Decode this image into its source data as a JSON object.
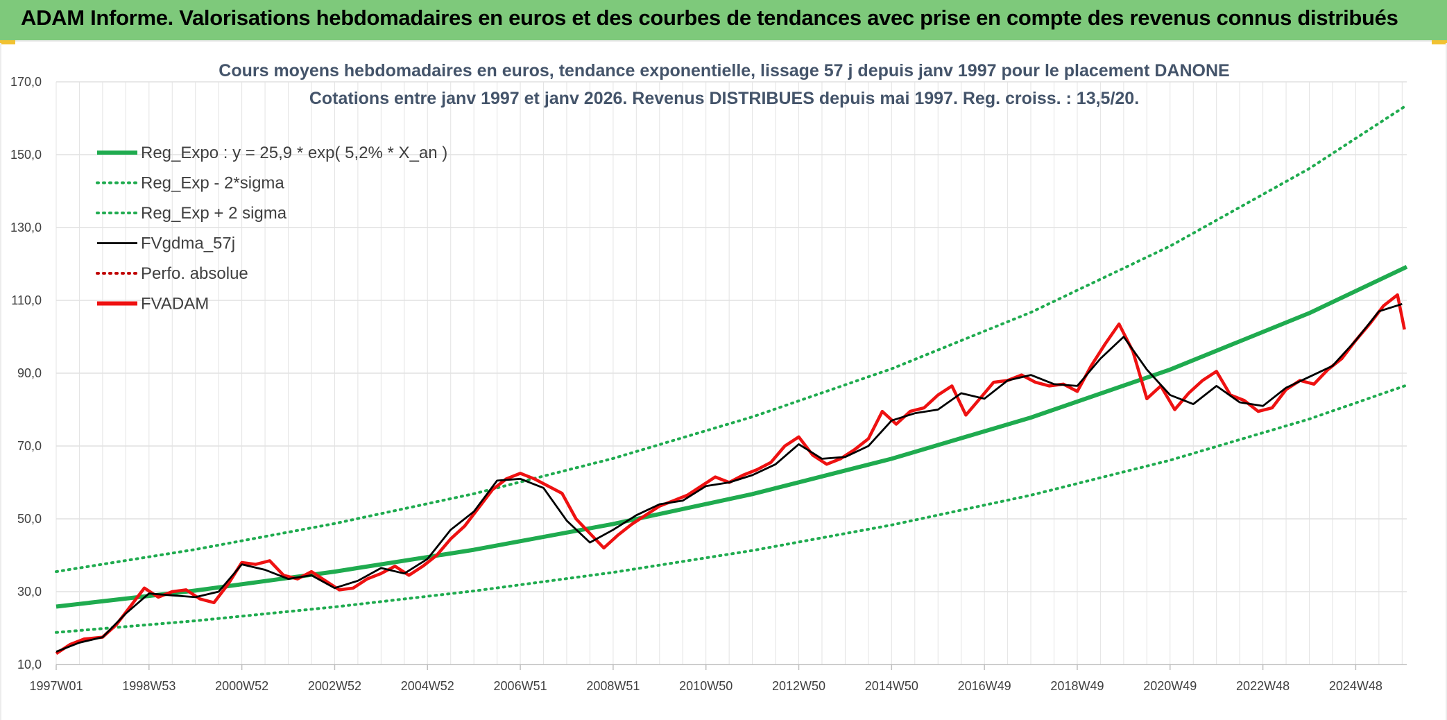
{
  "page": {
    "banner_title": "ADAM Informe. Valorisations hebdomadaires en euros et des courbes de tendances avec prise en compte des revenus connus distribués"
  },
  "colors": {
    "banner": "#7ec97b",
    "trend": "#1fab4f",
    "price": "#ee1111",
    "smooth": "#000000",
    "perfo": "#c00000"
  },
  "chart_data": {
    "type": "line",
    "title": "Cours moyens hebdomadaires en euros, tendance exponentielle, lissage 57 j depuis janv 1997 pour le placement DANONE",
    "subtitle": "Cotations entre janv 1997 et janv 2026. Revenus DISTRIBUES depuis mai 1997. Reg. croiss. : 13,5/20.",
    "xlabel": "",
    "ylabel": "",
    "ylim": [
      10,
      170
    ],
    "xlim": [
      1997.0,
      2026.1
    ],
    "grid": true,
    "legend_position": "top-left",
    "y_ticks": [
      "170,0",
      "150,0",
      "130,0",
      "110,0",
      "90,0",
      "70,0",
      "50,0",
      "30,0",
      "10,0"
    ],
    "y_tick_values": [
      170,
      150,
      130,
      110,
      90,
      70,
      50,
      30,
      10
    ],
    "x_ticks": [
      "1997W01",
      "1998W53",
      "2000W52",
      "2002W52",
      "2004W52",
      "2006W51",
      "2008W51",
      "2010W50",
      "2012W50",
      "2014W50",
      "2016W49",
      "2018W49",
      "2020W49",
      "2022W48",
      "2024W48"
    ],
    "x_tick_values": [
      1997.0,
      1999.0,
      2001.0,
      2003.0,
      2005.0,
      2007.0,
      2009.0,
      2011.0,
      2013.0,
      2015.0,
      2017.0,
      2019.0,
      2021.0,
      2023.0,
      2025.0
    ],
    "legend": [
      {
        "label": "Reg_Expo : y = 25,9 * exp( 5,2% *  X_an )",
        "style": "solid-thick",
        "color": "#1fab4f"
      },
      {
        "label": "Reg_Exp - 2*sigma",
        "style": "dotted",
        "color": "#1fab4f"
      },
      {
        "label": "Reg_Exp + 2 sigma",
        "style": "dotted",
        "color": "#1fab4f"
      },
      {
        "label": "FVgdma_57j",
        "style": "solid",
        "color": "#000000"
      },
      {
        "label": "Perfo. absolue",
        "style": "dotted",
        "color": "#c00000"
      },
      {
        "label": "FVADAM",
        "style": "solid-thick",
        "color": "#ee1111"
      }
    ],
    "series": [
      {
        "name": "Reg_Expo : y = 25,9 * exp( 5,2% *  X_an )",
        "x": [
          1997.0,
          2000.0,
          2003.0,
          2006.0,
          2009.0,
          2012.0,
          2015.0,
          2018.0,
          2021.0,
          2024.0,
          2026.1
        ],
        "values": [
          25.9,
          30.3,
          35.5,
          41.5,
          48.6,
          56.8,
          66.5,
          77.8,
          91.0,
          106.5,
          119.2
        ]
      },
      {
        "name": "Reg_Exp - 2*sigma",
        "x": [
          1997.0,
          2000.0,
          2003.0,
          2006.0,
          2009.0,
          2012.0,
          2015.0,
          2018.0,
          2021.0,
          2024.0,
          2026.1
        ],
        "values": [
          18.8,
          22.0,
          25.8,
          30.2,
          35.3,
          41.3,
          48.3,
          56.5,
          66.1,
          77.4,
          86.7
        ]
      },
      {
        "name": "Reg_Exp + 2 sigma",
        "x": [
          1997.0,
          2000.0,
          2003.0,
          2006.0,
          2009.0,
          2012.0,
          2015.0,
          2018.0,
          2021.0,
          2024.0,
          2026.1
        ],
        "values": [
          35.5,
          41.6,
          48.7,
          56.9,
          66.6,
          78.0,
          91.2,
          106.7,
          124.9,
          146.2,
          163.6
        ]
      },
      {
        "name": "FVgdma_57j",
        "x": [
          1997.0,
          1997.5,
          1998.0,
          1998.5,
          1999.0,
          1999.5,
          2000.0,
          2000.5,
          2001.0,
          2001.5,
          2002.0,
          2002.5,
          2003.0,
          2003.5,
          2004.0,
          2004.5,
          2005.0,
          2005.5,
          2006.0,
          2006.5,
          2007.0,
          2007.5,
          2008.0,
          2008.5,
          2009.0,
          2009.5,
          2010.0,
          2010.5,
          2011.0,
          2011.5,
          2012.0,
          2012.5,
          2013.0,
          2013.5,
          2014.0,
          2014.5,
          2015.0,
          2015.5,
          2016.0,
          2016.5,
          2017.0,
          2017.5,
          2018.0,
          2018.5,
          2019.0,
          2019.5,
          2020.0,
          2020.5,
          2021.0,
          2021.5,
          2022.0,
          2022.5,
          2023.0,
          2023.5,
          2024.0,
          2024.5,
          2025.0,
          2025.5,
          2026.0
        ],
        "values": [
          13.5,
          16.0,
          17.5,
          24.0,
          29.5,
          29.0,
          28.5,
          30.0,
          37.5,
          36.0,
          33.5,
          34.5,
          31.0,
          33.0,
          36.5,
          35.0,
          39.0,
          47.0,
          52.0,
          60.5,
          61.0,
          58.5,
          49.5,
          43.5,
          47.0,
          51.0,
          54.0,
          55.0,
          59.0,
          60.0,
          62.0,
          65.0,
          70.5,
          66.5,
          67.0,
          70.0,
          77.0,
          79.0,
          80.0,
          84.5,
          83.0,
          88.0,
          89.5,
          87.0,
          86.5,
          94.0,
          100.0,
          91.0,
          84.0,
          81.5,
          86.5,
          82.0,
          81.0,
          86.0,
          89.0,
          92.0,
          99.0,
          107.0,
          109.0
        ]
      },
      {
        "name": "FVADAM",
        "x": [
          1997.0,
          1997.3,
          1997.6,
          1998.0,
          1998.3,
          1998.6,
          1998.9,
          1999.2,
          1999.5,
          1999.8,
          2000.1,
          2000.4,
          2000.7,
          2001.0,
          2001.3,
          2001.6,
          2001.9,
          2002.2,
          2002.5,
          2002.8,
          2003.1,
          2003.4,
          2003.7,
          2004.0,
          2004.3,
          2004.6,
          2004.9,
          2005.2,
          2005.5,
          2005.8,
          2006.1,
          2006.4,
          2006.7,
          2007.0,
          2007.3,
          2007.6,
          2007.9,
          2008.2,
          2008.5,
          2008.8,
          2009.1,
          2009.4,
          2009.7,
          2010.0,
          2010.3,
          2010.6,
          2010.9,
          2011.2,
          2011.5,
          2011.8,
          2012.1,
          2012.4,
          2012.7,
          2013.0,
          2013.3,
          2013.6,
          2013.9,
          2014.2,
          2014.5,
          2014.8,
          2015.1,
          2015.4,
          2015.7,
          2016.0,
          2016.3,
          2016.6,
          2016.9,
          2017.2,
          2017.5,
          2017.8,
          2018.1,
          2018.4,
          2018.7,
          2019.0,
          2019.3,
          2019.6,
          2019.9,
          2020.2,
          2020.5,
          2020.8,
          2021.1,
          2021.4,
          2021.7,
          2022.0,
          2022.3,
          2022.6,
          2022.9,
          2023.2,
          2023.5,
          2023.8,
          2024.1,
          2024.4,
          2024.7,
          2025.0,
          2025.3,
          2025.6,
          2025.9,
          2026.05
        ],
        "values": [
          13.0,
          15.5,
          17.0,
          17.5,
          21.0,
          26.0,
          31.0,
          28.5,
          30.0,
          30.5,
          28.0,
          27.0,
          32.0,
          38.0,
          37.5,
          38.5,
          34.5,
          33.5,
          35.5,
          33.0,
          30.5,
          31.0,
          33.5,
          35.0,
          37.0,
          34.5,
          37.0,
          40.0,
          44.5,
          48.0,
          53.0,
          58.0,
          61.0,
          62.5,
          61.0,
          59.0,
          57.0,
          50.0,
          46.0,
          42.0,
          45.5,
          48.5,
          51.0,
          53.5,
          55.0,
          56.5,
          59.0,
          61.5,
          60.0,
          62.0,
          63.5,
          65.5,
          70.0,
          72.5,
          67.5,
          65.0,
          66.5,
          69.0,
          72.0,
          79.5,
          76.0,
          79.5,
          80.5,
          84.0,
          86.5,
          78.5,
          83.0,
          87.5,
          88.0,
          89.5,
          87.5,
          86.5,
          87.0,
          85.0,
          92.0,
          98.0,
          103.5,
          96.0,
          83.0,
          86.5,
          80.0,
          84.5,
          88.0,
          90.5,
          84.0,
          82.5,
          79.5,
          80.5,
          85.5,
          88.0,
          87.0,
          91.0,
          94.0,
          99.0,
          103.5,
          108.5,
          111.5,
          102.0
        ]
      }
    ]
  }
}
